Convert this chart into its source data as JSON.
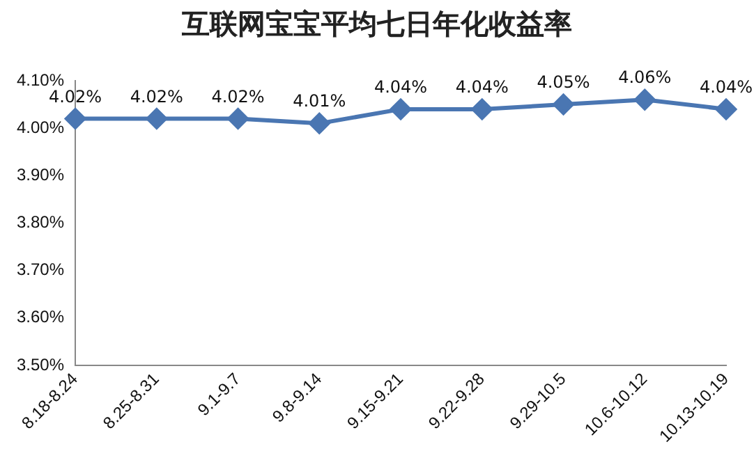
{
  "chart_data": {
    "type": "line",
    "title": "互联网宝宝平均七日年化收益率",
    "categories": [
      "8.18-8.24",
      "8.25-8.31",
      "9.1-9.7",
      "9.8-9.14",
      "9.15-9.21",
      "9.22-9.28",
      "9.29-10.5",
      "10.6-10.12",
      "10.13-10.19"
    ],
    "series": [
      {
        "color": "#4a76b2",
        "values": [
          4.02,
          4.02,
          4.02,
          4.01,
          4.04,
          4.04,
          4.05,
          4.06,
          4.04
        ],
        "value_labels": [
          "4.02%",
          "4.02%",
          "4.02%",
          "4.01%",
          "4.04%",
          "4.04%",
          "4.05%",
          "4.06%",
          "4.04%"
        ]
      }
    ],
    "ylim": [
      3.5,
      4.1
    ],
    "yticks": [
      {
        "value": 3.5,
        "label": "3.50%"
      },
      {
        "value": 3.6,
        "label": "3.60%"
      },
      {
        "value": 3.7,
        "label": "3.70%"
      },
      {
        "value": 3.8,
        "label": "3.80%"
      },
      {
        "value": 3.9,
        "label": "3.90%"
      },
      {
        "value": 4.0,
        "label": "4.00%"
      },
      {
        "value": 4.1,
        "label": "4.10%"
      }
    ],
    "grid": false,
    "legend": false,
    "marker": "diamond",
    "line_style": "solid"
  }
}
